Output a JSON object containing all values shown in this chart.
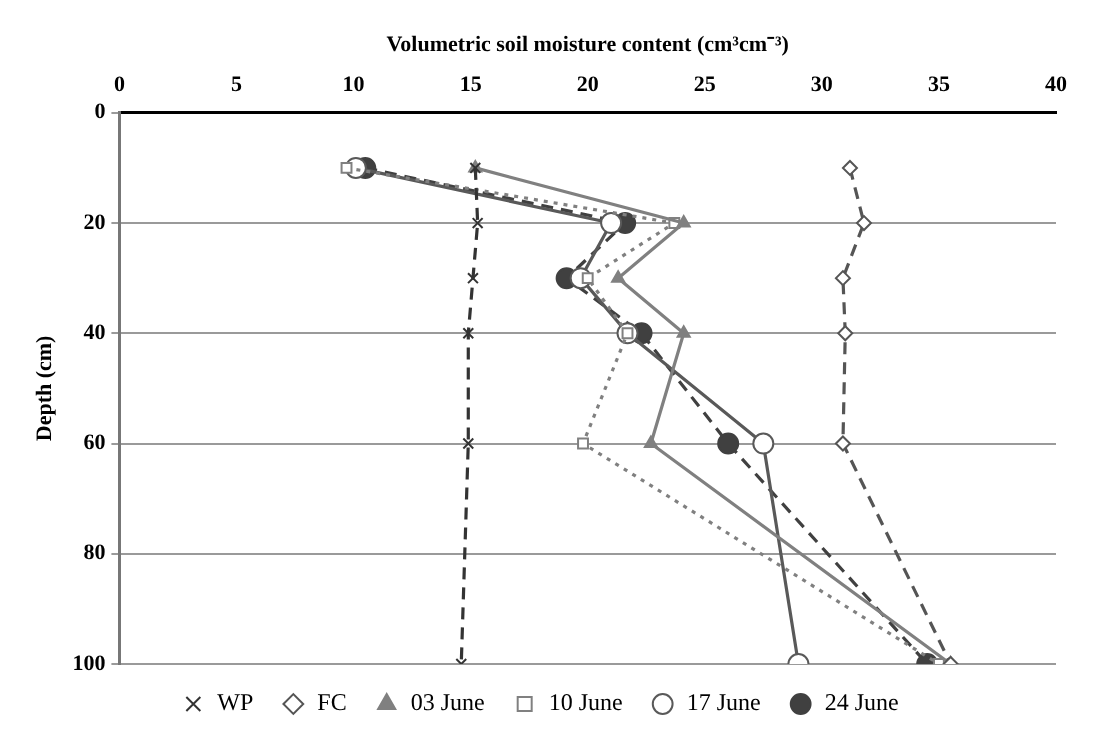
{
  "chart_data": {
    "type": "line",
    "xlabel": "Volumetric soil moisture content (cm³cm⁻³)",
    "ylabel": "Depth (cm)",
    "xlim": [
      0,
      40
    ],
    "xticks": [
      0,
      5,
      10,
      15,
      20,
      25,
      30,
      35,
      40
    ],
    "ylim": [
      100,
      0
    ],
    "yticks": [
      0,
      20,
      40,
      60,
      80,
      100
    ],
    "grid": "y",
    "legend": "bottom",
    "series": [
      {
        "name": "WP",
        "color": "#333333",
        "marker": "cross",
        "line_style": "dashed",
        "x": [
          15.2,
          15.3,
          15.1,
          14.9,
          14.9,
          14.6
        ],
        "values": [
          10,
          20,
          30,
          40,
          60,
          100
        ]
      },
      {
        "name": "FC",
        "color": "#555555",
        "marker": "diamond",
        "line_style": "dashed",
        "x": [
          31.2,
          31.8,
          30.9,
          31.0,
          30.9,
          35.5
        ],
        "values": [
          10,
          20,
          30,
          40,
          60,
          100
        ]
      },
      {
        "name": "03 June",
        "color": "#808080",
        "marker": "triangle",
        "line_style": "solid",
        "x": [
          15.2,
          24.1,
          21.3,
          24.1,
          22.7,
          35.5
        ],
        "values": [
          10,
          20,
          30,
          40,
          60,
          100
        ]
      },
      {
        "name": "10 June",
        "color": "#808080",
        "marker": "square",
        "line_style": "dotted",
        "x": [
          9.7,
          23.7,
          20.0,
          21.7,
          19.8,
          35.0
        ],
        "values": [
          10,
          20,
          30,
          40,
          60,
          100
        ]
      },
      {
        "name": "17 June",
        "color": "#595959",
        "marker": "circle",
        "line_style": "solid",
        "x": [
          10.1,
          21.0,
          19.7,
          21.7,
          27.5,
          29.0
        ],
        "values": [
          10,
          20,
          30,
          40,
          60,
          100
        ]
      },
      {
        "name": "24 June",
        "color": "#404040",
        "marker": "circle",
        "line_style": "dashed",
        "x": [
          10.5,
          21.6,
          19.1,
          22.3,
          26.0,
          34.5
        ],
        "values": [
          10,
          20,
          30,
          40,
          60,
          100
        ]
      }
    ]
  }
}
